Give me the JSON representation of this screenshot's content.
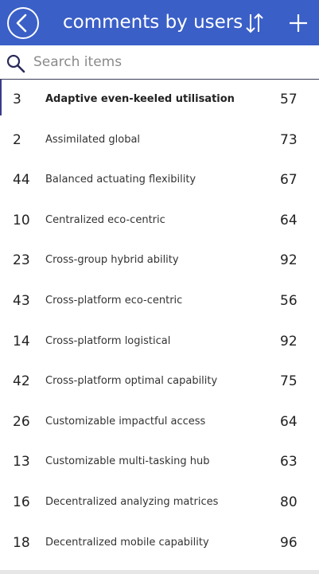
{
  "header": {
    "title": "comments by users",
    "background_color": "#3a5fc7",
    "icons": {
      "back": "chevron-left-circle-icon",
      "sort": "sort-arrows-icon",
      "add": "plus-icon"
    }
  },
  "search": {
    "placeholder": "Search items",
    "value": "",
    "icon": "search-icon"
  },
  "list": {
    "selected_index": 0,
    "items": [
      {
        "id": "3",
        "name": "Adaptive even-keeled utilisation",
        "value": "57"
      },
      {
        "id": "2",
        "name": "Assimilated global",
        "value": "73"
      },
      {
        "id": "44",
        "name": "Balanced actuating flexibility",
        "value": "67"
      },
      {
        "id": "10",
        "name": "Centralized eco-centric",
        "value": "64"
      },
      {
        "id": "23",
        "name": "Cross-group hybrid ability",
        "value": "92"
      },
      {
        "id": "43",
        "name": "Cross-platform eco-centric",
        "value": "56"
      },
      {
        "id": "14",
        "name": "Cross-platform logistical",
        "value": "92"
      },
      {
        "id": "42",
        "name": "Cross-platform optimal capability",
        "value": "75"
      },
      {
        "id": "26",
        "name": "Customizable impactful access",
        "value": "64"
      },
      {
        "id": "13",
        "name": "Customizable multi-tasking hub",
        "value": "63"
      },
      {
        "id": "16",
        "name": "Decentralized analyzing matrices",
        "value": "80"
      },
      {
        "id": "18",
        "name": "Decentralized mobile capability",
        "value": "96"
      }
    ]
  }
}
